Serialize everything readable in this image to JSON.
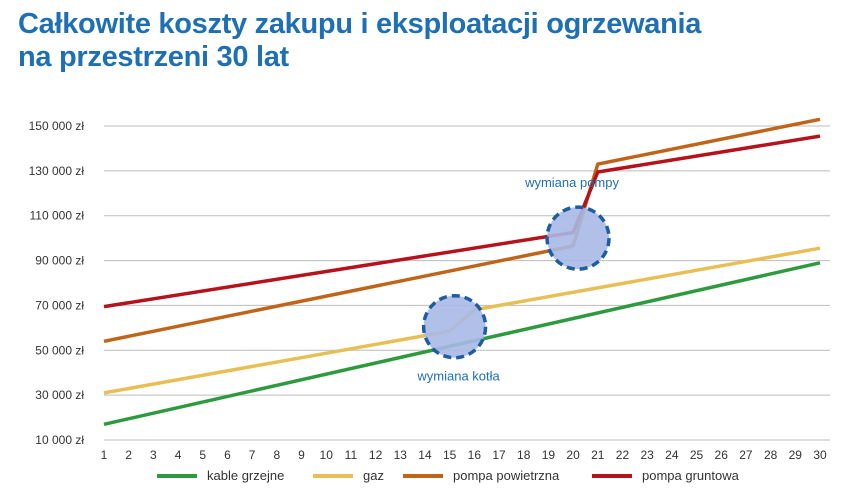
{
  "title": {
    "line1": "Całkowite koszty zakupu i eksploatacji ogrzewania",
    "line2": "na przestrzeni 30 lat"
  },
  "chart_data": {
    "type": "line",
    "title": "Całkowite koszty zakupu i eksploatacji ogrzewania na przestrzeni 30 lat",
    "xlabel": "",
    "ylabel": "",
    "x": [
      1,
      2,
      3,
      4,
      5,
      6,
      7,
      8,
      9,
      10,
      11,
      12,
      13,
      14,
      15,
      16,
      17,
      18,
      19,
      20,
      21,
      22,
      23,
      24,
      25,
      26,
      27,
      28,
      29,
      30
    ],
    "xlim": [
      1,
      30
    ],
    "ylim": [
      10000,
      150000
    ],
    "y_ticks": [
      10000,
      30000,
      50000,
      70000,
      90000,
      110000,
      130000,
      150000
    ],
    "y_tick_labels": [
      "10 000 zł",
      "30 000 zł",
      "50 000 zł",
      "70 000 zł",
      "90 000 zł",
      "110 000 zł",
      "130 000 zł",
      "150 000 zł"
    ],
    "grid": true,
    "legend_position": "bottom",
    "series": [
      {
        "name": "kable grzejne",
        "color": "#2e9a3e",
        "points": [
          [
            1,
            17000
          ],
          [
            30,
            89000
          ]
        ]
      },
      {
        "name": "gaz",
        "color": "#e8bf55",
        "points": [
          [
            1,
            31000
          ],
          [
            15,
            58500
          ],
          [
            16,
            68000
          ],
          [
            30,
            95500
          ]
        ]
      },
      {
        "name": "pompa powietrzna",
        "color": "#c0641a",
        "points": [
          [
            1,
            54000
          ],
          [
            20,
            96500
          ],
          [
            21,
            133000
          ],
          [
            30,
            153000
          ]
        ]
      },
      {
        "name": "pompa gruntowa",
        "color": "#b5121b",
        "points": [
          [
            1,
            69500
          ],
          [
            20,
            102500
          ],
          [
            21,
            129500
          ],
          [
            30,
            145500
          ]
        ]
      }
    ],
    "annotations": [
      {
        "text": "wymiana pompy",
        "x": 20.2,
        "y": 100000
      },
      {
        "text": "wymiana kotła",
        "x": 15.2,
        "y": 60500
      }
    ]
  }
}
